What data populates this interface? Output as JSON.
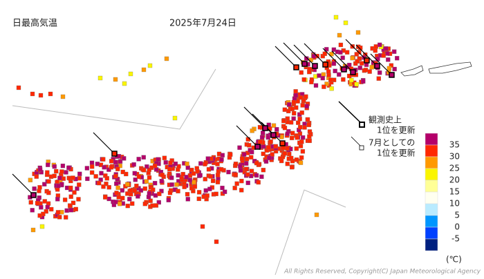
{
  "header": {
    "title": "日最高気温",
    "date": "2025年7月24日"
  },
  "legend": {
    "record_all_time": [
      "観測史上",
      "1位を更新"
    ],
    "record_july": [
      "7月としての",
      "1位を更新"
    ]
  },
  "color_scale": {
    "labels": [
      "35",
      "30",
      "25",
      "20",
      "15",
      "10",
      "5",
      "0",
      "-5"
    ],
    "colors": [
      "#b4006a",
      "#ff2800",
      "#ff9900",
      "#faf500",
      "#ffff96",
      "#fffff0",
      "#b9ebff",
      "#0096ff",
      "#0041ff",
      "#002080"
    ],
    "unit": "(℃)"
  },
  "footer": {
    "copyright": "All Rights Reserved, Copyright(C) Japan Meteorological Agency"
  }
}
